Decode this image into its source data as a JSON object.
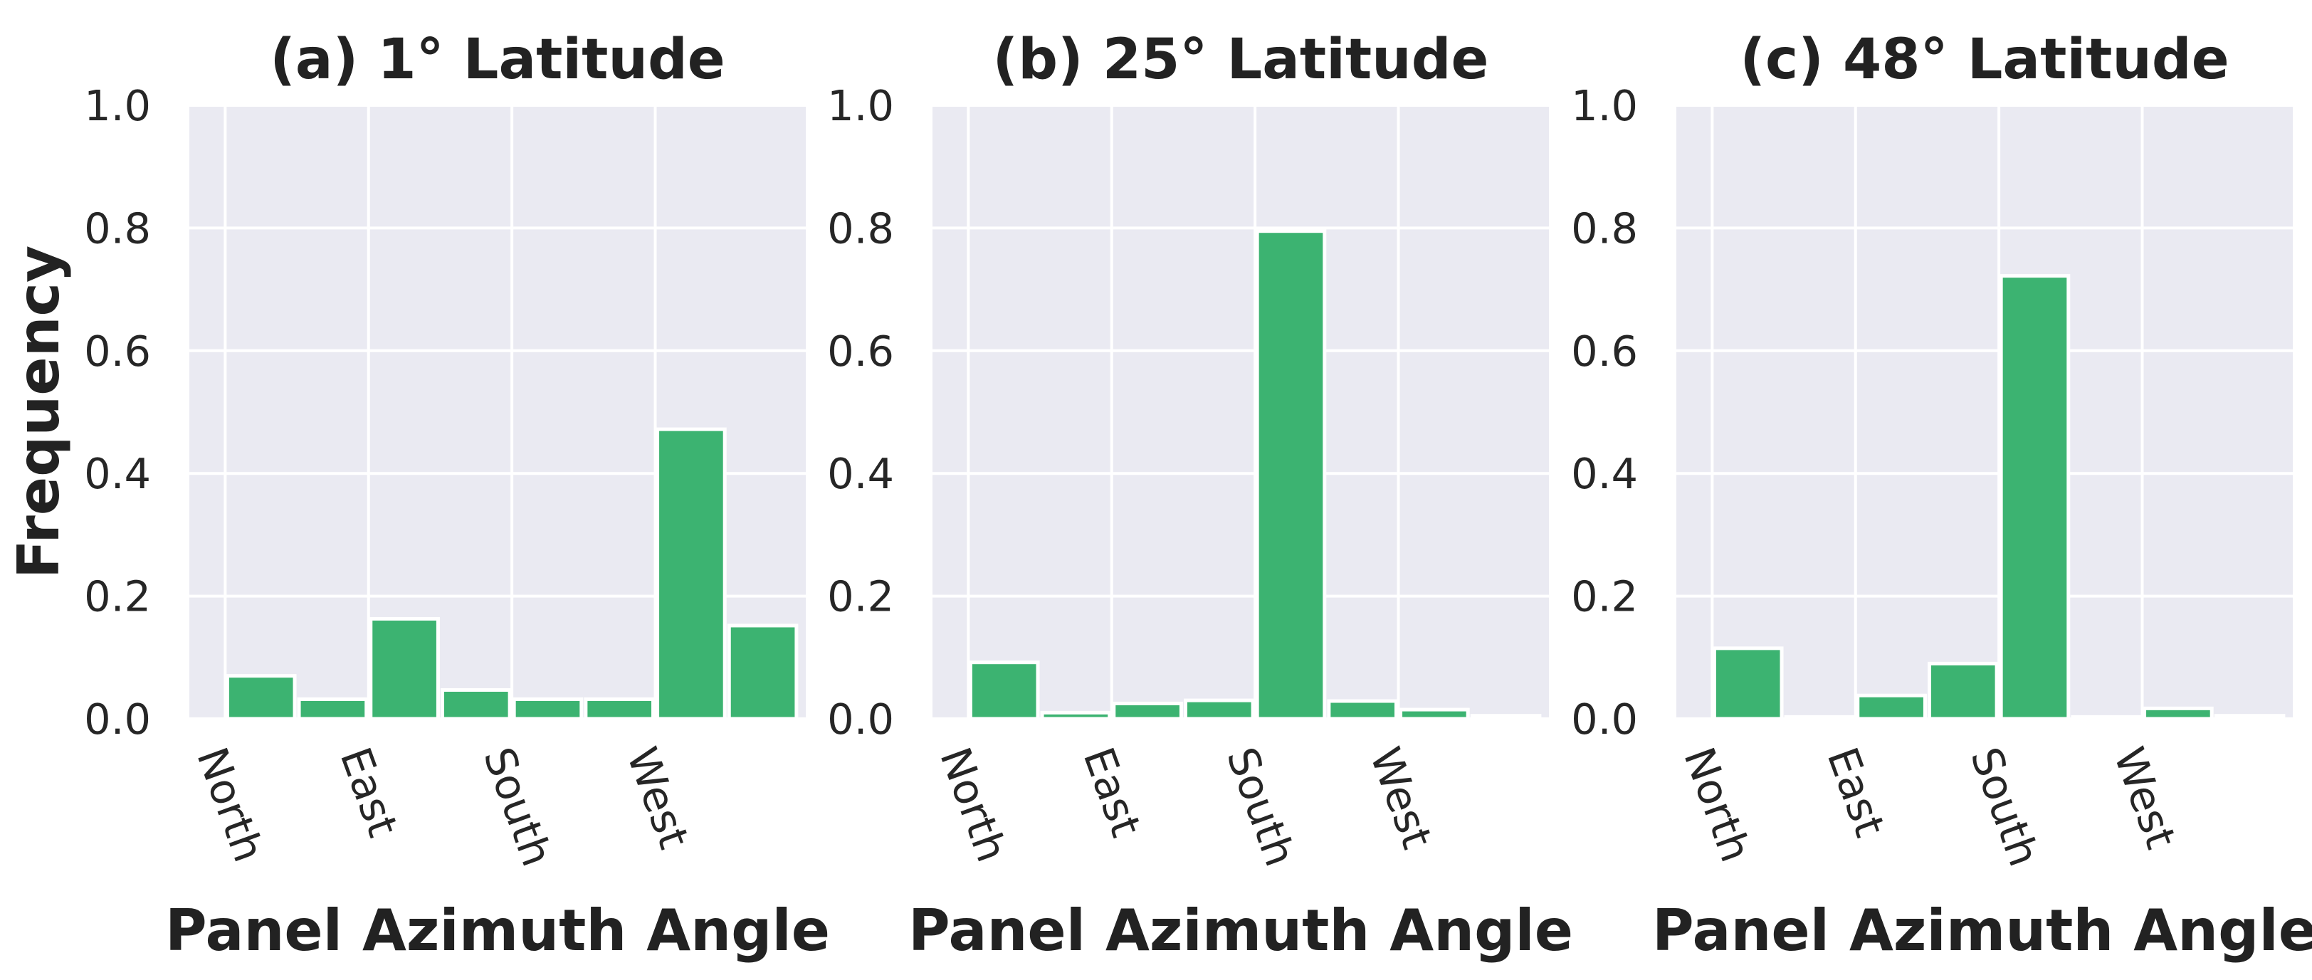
{
  "chart_data": [
    {
      "type": "bar",
      "title": "(a) 1° Latitude",
      "xlabel": "Panel Azimuth Angle",
      "ylabel": "Frequency",
      "x_tick_labels": [
        "North",
        "East",
        "South",
        "West"
      ],
      "yticks": [
        "0.0",
        "0.2",
        "0.4",
        "0.6",
        "0.8",
        "1.0"
      ],
      "ylim": [
        0,
        1
      ],
      "grid": true,
      "bar_color": "#3cb371",
      "values": [
        0.07,
        0.032,
        0.163,
        0.047,
        0.032,
        0.032,
        0.472,
        0.152
      ]
    },
    {
      "type": "bar",
      "title": "(b) 25° Latitude",
      "xlabel": "Panel Azimuth Angle",
      "ylabel": "",
      "x_tick_labels": [
        "North",
        "East",
        "South",
        "West"
      ],
      "yticks": [
        "0.0",
        "0.2",
        "0.4",
        "0.6",
        "0.8",
        "1.0"
      ],
      "ylim": [
        0,
        1
      ],
      "grid": true,
      "bar_color": "#3cb371",
      "values": [
        0.092,
        0.01,
        0.025,
        0.03,
        0.795,
        0.029,
        0.015,
        0.005
      ]
    },
    {
      "type": "bar",
      "title": "(c) 48° Latitude",
      "xlabel": "Panel Azimuth Angle",
      "ylabel": "",
      "x_tick_labels": [
        "North",
        "East",
        "South",
        "West"
      ],
      "yticks": [
        "0.0",
        "0.2",
        "0.4",
        "0.6",
        "0.8",
        "1.0"
      ],
      "ylim": [
        0,
        1
      ],
      "grid": true,
      "bar_color": "#3cb371",
      "values": [
        0.115,
        0.003,
        0.038,
        0.09,
        0.722,
        0.003,
        0.017,
        0.005
      ]
    }
  ]
}
